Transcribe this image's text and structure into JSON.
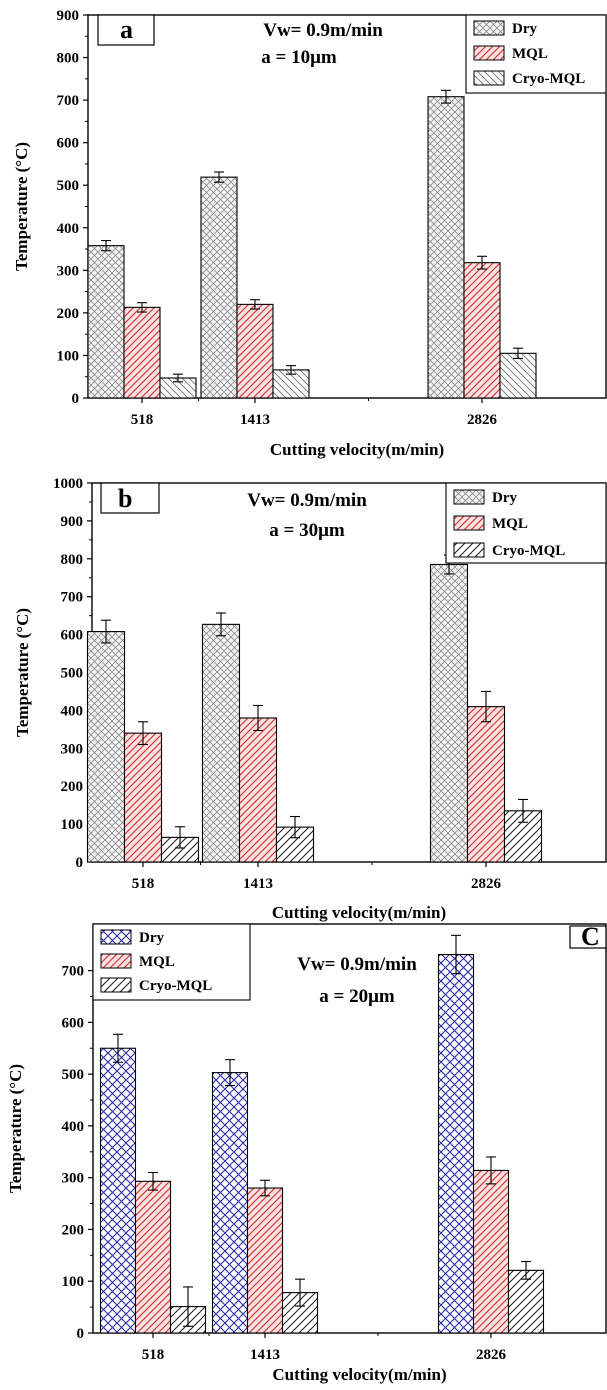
{
  "chart_data": [
    {
      "type": "bar",
      "panel_label": "a",
      "annotations": [
        "Vw= 0.9m/min",
        "a = 10μm"
      ],
      "xlabel": "Cutting velocity(m/min)",
      "ylabel": "Temperature (°C)",
      "categories": [
        "518",
        "1413",
        "2826"
      ],
      "ylim": [
        0,
        900
      ],
      "yticks": [
        0,
        100,
        200,
        300,
        400,
        500,
        600,
        700,
        800,
        900
      ],
      "legend_position": "top-right",
      "series": [
        {
          "name": "Dry",
          "values": [
            358,
            519,
            708
          ],
          "errors": [
            12,
            12,
            15
          ],
          "pattern": "crosshatch",
          "color": "#e3e3e3"
        },
        {
          "name": "MQL",
          "values": [
            213,
            220,
            318
          ],
          "errors": [
            11,
            11,
            15
          ],
          "pattern": "diagonal",
          "color": "#f2b6b6"
        },
        {
          "name": "Cryo-MQL",
          "values": [
            47,
            66,
            105
          ],
          "errors": [
            9,
            10,
            12
          ],
          "pattern": "backdiagonal",
          "color": "#e8e8e8"
        }
      ]
    },
    {
      "type": "bar",
      "panel_label": "b",
      "annotations": [
        "Vw= 0.9m/min",
        "a = 30μm"
      ],
      "xlabel": "Cutting velocity(m/min)",
      "ylabel": "Temperature (°C)",
      "categories": [
        "518",
        "1413",
        "2826"
      ],
      "ylim": [
        0,
        1000
      ],
      "yticks": [
        0,
        100,
        200,
        300,
        400,
        500,
        600,
        700,
        800,
        900,
        1000
      ],
      "legend_position": "top-right",
      "series": [
        {
          "name": "Dry",
          "values": [
            608,
            627,
            785
          ],
          "errors": [
            30,
            30,
            25
          ],
          "pattern": "crosshatch",
          "color": "#e3e3e3"
        },
        {
          "name": "MQL",
          "values": [
            340,
            380,
            410
          ],
          "errors": [
            30,
            33,
            40
          ],
          "pattern": "diagonal",
          "color": "#f2b6b6"
        },
        {
          "name": "Cryo-MQL",
          "values": [
            65,
            92,
            135
          ],
          "errors": [
            28,
            28,
            30
          ],
          "pattern": "backdiagonal",
          "color": "#e8e8e8"
        }
      ]
    },
    {
      "type": "bar",
      "panel_label": "C",
      "annotations": [
        "Vw= 0.9m/min",
        "a = 20μm"
      ],
      "xlabel": "Cutting velocity(m/min)",
      "ylabel": "Temperature (°C)",
      "categories": [
        "518",
        "1413",
        "2826"
      ],
      "ylim": [
        0,
        790
      ],
      "yticks": [
        0,
        100,
        200,
        300,
        400,
        500,
        600,
        700
      ],
      "legend_position": "top-left",
      "series": [
        {
          "name": "Dry",
          "values": [
            550,
            503,
            731
          ],
          "errors": [
            27,
            25,
            37
          ],
          "pattern": "crosshatch",
          "color": "#8a8ad6"
        },
        {
          "name": "MQL",
          "values": [
            293,
            280,
            314
          ],
          "errors": [
            17,
            15,
            26
          ],
          "pattern": "diagonal",
          "color": "#f2b6b6"
        },
        {
          "name": "Cryo-MQL",
          "values": [
            51,
            78,
            121
          ],
          "errors": [
            38,
            26,
            17
          ],
          "pattern": "diagonal",
          "color": "#e8e8e8"
        }
      ]
    }
  ]
}
